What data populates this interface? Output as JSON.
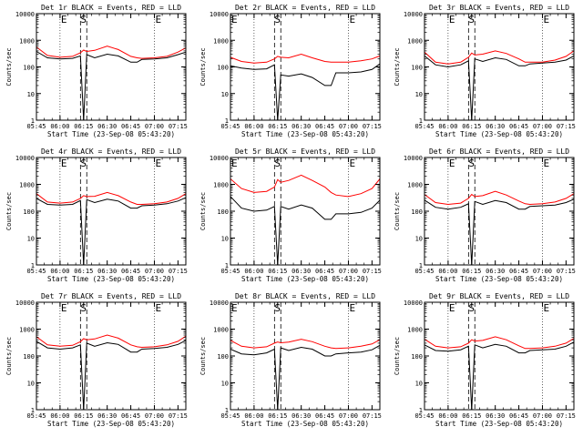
{
  "figure": {
    "ylabel": "Counts/sec",
    "xlabel": "Start Time (23-Sep-08 05:43:20)",
    "x_ticks": [
      "05:45",
      "06:00",
      "06:15",
      "06:30",
      "06:45",
      "07:00",
      "07:15"
    ],
    "y_ticks": [
      "1",
      "10",
      "100",
      "1000",
      "10000"
    ],
    "marker_labels": [
      "E",
      "S",
      "E"
    ],
    "colors": {
      "events": "#000000",
      "lld": "#ff0000",
      "axis": "#000000",
      "background": "#ffffff"
    }
  },
  "chart_data": [
    {
      "type": "line",
      "title": "Det 1r BLACK = Events, RED = LLD",
      "xlabel": "Start Time (23-Sep-08 05:43:20)",
      "ylabel": "Counts/sec",
      "x": [
        "05:45",
        "05:52",
        "06:00",
        "06:08",
        "06:13",
        "06:15",
        "06:17",
        "06:22",
        "06:30",
        "06:37",
        "06:45",
        "06:49",
        "06:52",
        "07:00",
        "07:08",
        "07:15",
        "07:20"
      ],
      "x_ticks": [
        "05:45",
        "06:00",
        "06:15",
        "06:30",
        "06:45",
        "07:00",
        "07:15"
      ],
      "ylim": [
        1,
        10000
      ],
      "yscale": "log",
      "series": [
        {
          "name": "BLACK = Events",
          "values": [
            380,
            220,
            200,
            210,
            260,
            1,
            290,
            220,
            300,
            260,
            150,
            150,
            190,
            200,
            220,
            290,
            360
          ]
        },
        {
          "name": "RED = LLD",
          "values": [
            560,
            270,
            230,
            250,
            340,
            430,
            380,
            420,
            600,
            450,
            250,
            220,
            210,
            220,
            250,
            360,
            520
          ]
        }
      ],
      "markers": [
        "06:00",
        "06:13",
        "06:17",
        "07:00"
      ]
    },
    {
      "type": "line",
      "title": "Det 2r BLACK = Events, RED = LLD",
      "xlabel": "Start Time (23-Sep-08 05:43:20)",
      "ylabel": "Counts/sec",
      "x": [
        "05:45",
        "05:52",
        "06:00",
        "06:08",
        "06:13",
        "06:15",
        "06:17",
        "06:22",
        "06:30",
        "06:37",
        "06:45",
        "06:49",
        "06:52",
        "07:00",
        "07:08",
        "07:15",
        "07:20"
      ],
      "x_ticks": [
        "05:45",
        "06:00",
        "06:15",
        "06:30",
        "06:45",
        "07:00",
        "07:15"
      ],
      "ylim": [
        1,
        10000
      ],
      "yscale": "log",
      "series": [
        {
          "name": "BLACK = Events",
          "values": [
            110,
            90,
            80,
            85,
            120,
            1,
            50,
            45,
            55,
            40,
            20,
            20,
            60,
            60,
            65,
            80,
            130
          ]
        },
        {
          "name": "RED = LLD",
          "values": [
            230,
            160,
            140,
            150,
            200,
            250,
            230,
            220,
            300,
            220,
            160,
            150,
            150,
            150,
            170,
            200,
            260
          ]
        }
      ],
      "markers": [
        "05:45",
        "06:13",
        "06:17",
        "07:00"
      ]
    },
    {
      "type": "line",
      "title": "Det 3r BLACK = Events, RED = LLD",
      "xlabel": "Start Time (23-Sep-08 05:43:20)",
      "ylabel": "Counts/sec",
      "x": [
        "05:45",
        "05:52",
        "06:00",
        "06:08",
        "06:13",
        "06:15",
        "06:17",
        "06:22",
        "06:30",
        "06:37",
        "06:45",
        "06:49",
        "06:52",
        "07:00",
        "07:08",
        "07:15",
        "07:20"
      ],
      "x_ticks": [
        "05:45",
        "06:00",
        "06:15",
        "06:30",
        "06:45",
        "07:00",
        "07:15"
      ],
      "ylim": [
        1,
        10000
      ],
      "yscale": "log",
      "series": [
        {
          "name": "BLACK = Events",
          "values": [
            260,
            120,
            100,
            120,
            170,
            1,
            200,
            160,
            220,
            190,
            110,
            110,
            130,
            140,
            150,
            180,
            260
          ]
        },
        {
          "name": "RED = LLD",
          "values": [
            360,
            150,
            130,
            150,
            230,
            330,
            280,
            300,
            400,
            320,
            200,
            150,
            150,
            150,
            180,
            250,
            400
          ]
        }
      ],
      "markers": [
        "06:00",
        "06:13",
        "06:17",
        "07:00"
      ]
    },
    {
      "type": "line",
      "title": "Det 4r BLACK = Events, RED = LLD",
      "xlabel": "Start Time (23-Sep-08 05:43:20)",
      "ylabel": "Counts/sec",
      "x": [
        "05:45",
        "05:52",
        "06:00",
        "06:08",
        "06:13",
        "06:15",
        "06:17",
        "06:22",
        "06:30",
        "06:37",
        "06:45",
        "06:49",
        "06:52",
        "07:00",
        "07:08",
        "07:15",
        "07:20"
      ],
      "x_ticks": [
        "05:45",
        "06:00",
        "06:15",
        "06:30",
        "06:45",
        "07:00",
        "07:15"
      ],
      "ylim": [
        1,
        10000
      ],
      "yscale": "log",
      "series": [
        {
          "name": "BLACK = Events",
          "values": [
            300,
            180,
            170,
            180,
            250,
            1,
            270,
            210,
            280,
            240,
            130,
            130,
            160,
            170,
            190,
            240,
            320
          ]
        },
        {
          "name": "RED = LLD",
          "values": [
            450,
            220,
            200,
            220,
            300,
            380,
            350,
            360,
            500,
            380,
            220,
            180,
            180,
            190,
            220,
            300,
            450
          ]
        }
      ],
      "markers": [
        "06:00",
        "06:13",
        "06:17",
        "07:00"
      ]
    },
    {
      "type": "line",
      "title": "Det 5r BLACK = Events, RED = LLD",
      "xlabel": "Start Time (23-Sep-08 05:43:20)",
      "ylabel": "Counts/sec",
      "x": [
        "05:45",
        "05:52",
        "06:00",
        "06:08",
        "06:13",
        "06:15",
        "06:17",
        "06:22",
        "06:30",
        "06:37",
        "06:45",
        "06:49",
        "06:52",
        "07:00",
        "07:08",
        "07:15",
        "07:20"
      ],
      "x_ticks": [
        "05:45",
        "06:00",
        "06:15",
        "06:30",
        "06:45",
        "07:00",
        "07:15"
      ],
      "ylim": [
        1,
        10000
      ],
      "yscale": "log",
      "series": [
        {
          "name": "BLACK = Events",
          "values": [
            350,
            130,
            100,
            110,
            150,
            1,
            150,
            120,
            170,
            130,
            50,
            50,
            80,
            80,
            90,
            130,
            260
          ]
        },
        {
          "name": "RED = LLD",
          "values": [
            1600,
            700,
            500,
            550,
            800,
            1500,
            1200,
            1400,
            2200,
            1400,
            800,
            500,
            400,
            350,
            450,
            700,
            1600
          ]
        }
      ],
      "markers": [
        "05:45",
        "06:13",
        "06:17",
        "07:00"
      ]
    },
    {
      "type": "line",
      "title": "Det 6r BLACK = Events, RED = LLD",
      "xlabel": "Start Time (23-Sep-08 05:43:20)",
      "ylabel": "Counts/sec",
      "x": [
        "05:45",
        "05:52",
        "06:00",
        "06:08",
        "06:13",
        "06:15",
        "06:17",
        "06:22",
        "06:30",
        "06:37",
        "06:45",
        "06:49",
        "06:52",
        "07:00",
        "07:08",
        "07:15",
        "07:20"
      ],
      "x_ticks": [
        "05:45",
        "06:00",
        "06:15",
        "06:30",
        "06:45",
        "07:00",
        "07:15"
      ],
      "ylim": [
        1,
        10000
      ],
      "yscale": "log",
      "series": [
        {
          "name": "BLACK = Events",
          "values": [
            260,
            140,
            120,
            140,
            190,
            1,
            230,
            180,
            250,
            210,
            120,
            120,
            150,
            160,
            170,
            210,
            280
          ]
        },
        {
          "name": "RED = LLD",
          "values": [
            420,
            210,
            180,
            200,
            300,
            420,
            350,
            380,
            550,
            400,
            240,
            190,
            180,
            190,
            220,
            300,
            450
          ]
        }
      ],
      "markers": [
        "06:00",
        "06:13",
        "06:17",
        "07:00"
      ]
    },
    {
      "type": "line",
      "title": "Det 7r BLACK = Events, RED = LLD",
      "xlabel": "Start Time (23-Sep-08 05:43:20)",
      "ylabel": "Counts/sec",
      "x": [
        "05:45",
        "05:52",
        "06:00",
        "06:08",
        "06:13",
        "06:15",
        "06:17",
        "06:22",
        "06:30",
        "06:37",
        "06:45",
        "06:49",
        "06:52",
        "07:00",
        "07:08",
        "07:15",
        "07:20"
      ],
      "x_ticks": [
        "05:45",
        "06:00",
        "06:15",
        "06:30",
        "06:45",
        "07:00",
        "07:15"
      ],
      "ylim": [
        1,
        10000
      ],
      "yscale": "log",
      "series": [
        {
          "name": "BLACK = Events",
          "values": [
            350,
            200,
            180,
            200,
            260,
            1,
            300,
            230,
            310,
            270,
            140,
            140,
            180,
            190,
            210,
            270,
            380
          ]
        },
        {
          "name": "RED = LLD",
          "values": [
            520,
            260,
            230,
            250,
            340,
            440,
            400,
            430,
            600,
            460,
            260,
            220,
            210,
            220,
            260,
            350,
            550
          ]
        }
      ],
      "markers": [
        "06:00",
        "06:13",
        "06:17",
        "07:00"
      ]
    },
    {
      "type": "line",
      "title": "Det 8r BLACK = Events, RED = LLD",
      "xlabel": "Start Time (23-Sep-08 05:43:20)",
      "ylabel": "Counts/sec",
      "x": [
        "05:45",
        "05:52",
        "06:00",
        "06:08",
        "06:13",
        "06:15",
        "06:17",
        "06:22",
        "06:30",
        "06:37",
        "06:45",
        "06:49",
        "06:52",
        "07:00",
        "07:08",
        "07:15",
        "07:20"
      ],
      "x_ticks": [
        "05:45",
        "06:00",
        "06:15",
        "06:30",
        "06:45",
        "07:00",
        "07:15"
      ],
      "ylim": [
        1,
        10000
      ],
      "yscale": "log",
      "series": [
        {
          "name": "BLACK = Events",
          "values": [
            180,
            120,
            110,
            130,
            180,
            1,
            200,
            160,
            210,
            180,
            100,
            100,
            120,
            130,
            140,
            170,
            250
          ]
        },
        {
          "name": "RED = LLD",
          "values": [
            380,
            230,
            200,
            220,
            300,
            330,
            310,
            330,
            420,
            340,
            230,
            200,
            190,
            200,
            230,
            280,
            400
          ]
        }
      ],
      "markers": [
        "05:45",
        "06:13",
        "06:17",
        "07:00"
      ]
    },
    {
      "type": "line",
      "title": "Det 9r BLACK = Events, RED = LLD",
      "xlabel": "Start Time (23-Sep-08 05:43:20)",
      "ylabel": "Counts/sec",
      "x": [
        "05:45",
        "05:52",
        "06:00",
        "06:08",
        "06:13",
        "06:15",
        "06:17",
        "06:22",
        "06:30",
        "06:37",
        "06:45",
        "06:49",
        "06:52",
        "07:00",
        "07:08",
        "07:15",
        "07:20"
      ],
      "x_ticks": [
        "05:45",
        "06:00",
        "06:15",
        "06:30",
        "06:45",
        "07:00",
        "07:15"
      ],
      "ylim": [
        1,
        10000
      ],
      "yscale": "log",
      "series": [
        {
          "name": "BLACK = Events",
          "values": [
            260,
            160,
            150,
            170,
            230,
            1,
            260,
            200,
            270,
            230,
            130,
            130,
            160,
            170,
            180,
            230,
            330
          ]
        },
        {
          "name": "RED = LLD",
          "values": [
            420,
            230,
            200,
            220,
            300,
            400,
            360,
            380,
            520,
            400,
            240,
            190,
            190,
            200,
            230,
            300,
            450
          ]
        }
      ],
      "markers": [
        "06:00",
        "06:13",
        "06:17",
        "07:00"
      ]
    }
  ]
}
